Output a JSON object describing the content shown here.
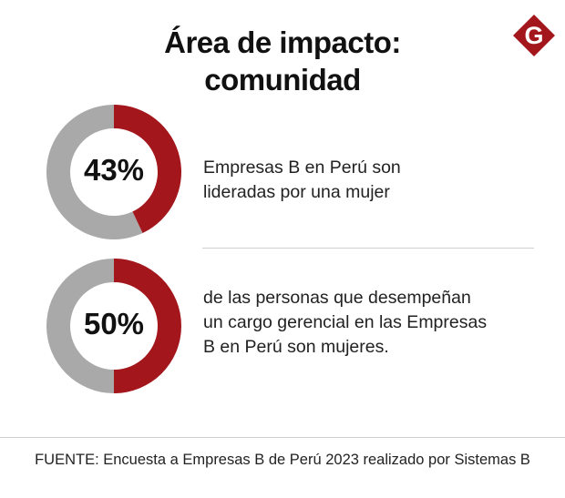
{
  "title": {
    "line1": "Área de impacto:",
    "line2": "comunidad"
  },
  "logo": {
    "letter": "G",
    "color": "#a3161c"
  },
  "colors": {
    "highlight": "#a3161c",
    "remainder": "#a9a9a9"
  },
  "chart_data": [
    {
      "type": "pie",
      "value": 43,
      "label": "43%",
      "description_lines": [
        "Empresas B en Perú son",
        "lideradas por una mujer"
      ]
    },
    {
      "type": "pie",
      "value": 50,
      "label": "50%",
      "description_lines": [
        "de las personas que desempeñan",
        "un cargo gerencial en las Empresas",
        "B en Perú son mujeres."
      ]
    }
  ],
  "source": "FUENTE: Encuesta a Empresas B de Perú 2023 realizado por Sistemas B"
}
